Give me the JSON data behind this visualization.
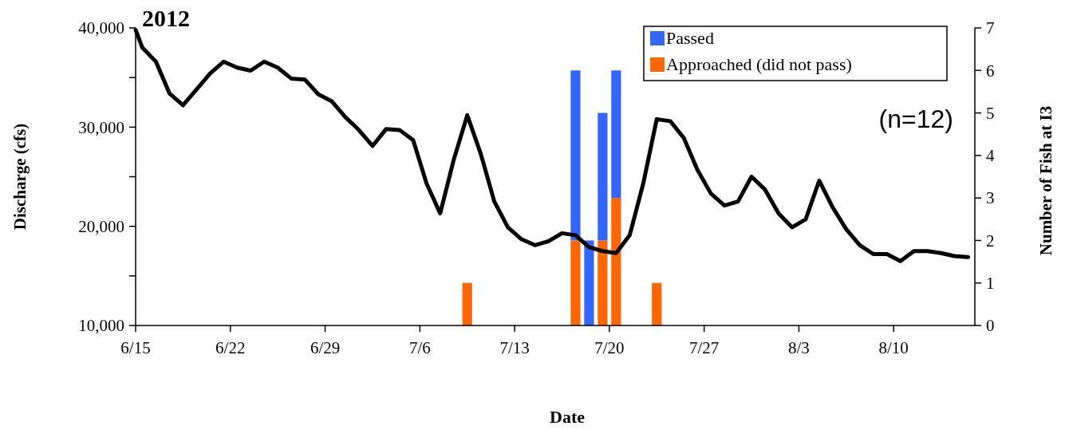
{
  "chart_data": {
    "type": "line",
    "title": "2012",
    "xlabel": "Date",
    "ylabel": "Discharge (cfs)",
    "y2label": "Number of Fish at I3",
    "annotations": [
      "(n=12)"
    ],
    "xlim": [
      "2012-06-15",
      "2012-08-16"
    ],
    "xticks": [
      {
        "value": "2012-06-15",
        "label": "6/15"
      },
      {
        "value": "2012-06-22",
        "label": "6/22"
      },
      {
        "value": "2012-06-29",
        "label": "6/29"
      },
      {
        "value": "2012-07-06",
        "label": "7/6"
      },
      {
        "value": "2012-07-13",
        "label": "7/13"
      },
      {
        "value": "2012-07-20",
        "label": "7/20"
      },
      {
        "value": "2012-07-27",
        "label": "7/27"
      },
      {
        "value": "2012-08-03",
        "label": "8/3"
      },
      {
        "value": "2012-08-10",
        "label": "8/10"
      }
    ],
    "ylim": [
      10000,
      40000
    ],
    "yticks": [
      {
        "value": 10000,
        "label": "10,000"
      },
      {
        "value": 15000,
        "label": null
      },
      {
        "value": 20000,
        "label": "20,000"
      },
      {
        "value": 25000,
        "label": null
      },
      {
        "value": 30000,
        "label": "30,000"
      },
      {
        "value": 35000,
        "label": null
      },
      {
        "value": 40000,
        "label": "40,000"
      }
    ],
    "y2lim": [
      0,
      7
    ],
    "y2ticks": [
      0,
      1,
      2,
      3,
      4,
      5,
      6,
      7
    ],
    "stacked": true,
    "legend": "top right",
    "series": [
      {
        "color": "#000000",
        "x": [
          "2012-06-15T00:00",
          "2012-06-15T12:00",
          "2012-06-16T12:00",
          "2012-06-17T12:00",
          "2012-06-18T12:00",
          "2012-06-19T12:00",
          "2012-06-20T12:00",
          "2012-06-21T12:00",
          "2012-06-22T12:00",
          "2012-06-23T12:00",
          "2012-06-24T12:00",
          "2012-06-25T12:00",
          "2012-06-26T12:00",
          "2012-06-27T12:00",
          "2012-06-28T12:00",
          "2012-06-29T12:00",
          "2012-06-30T12:00",
          "2012-07-01T12:00",
          "2012-07-02T12:00",
          "2012-07-03T12:00",
          "2012-07-04T12:00",
          "2012-07-05T12:00",
          "2012-07-06T12:00",
          "2012-07-07T12:00",
          "2012-07-08T12:00",
          "2012-07-09T12:00",
          "2012-07-10T12:00",
          "2012-07-11T12:00",
          "2012-07-12T12:00",
          "2012-07-13T12:00",
          "2012-07-14T12:00",
          "2012-07-15T12:00",
          "2012-07-16T12:00",
          "2012-07-17T12:00",
          "2012-07-18T12:00",
          "2012-07-19T12:00",
          "2012-07-20T12:00",
          "2012-07-21T12:00",
          "2012-07-22T12:00",
          "2012-07-23T12:00",
          "2012-07-24T12:00",
          "2012-07-25T12:00",
          "2012-07-26T12:00",
          "2012-07-27T12:00",
          "2012-07-28T12:00",
          "2012-07-29T12:00",
          "2012-07-30T12:00",
          "2012-07-31T12:00",
          "2012-08-01T12:00",
          "2012-08-02T12:00",
          "2012-08-03T12:00",
          "2012-08-04T12:00",
          "2012-08-05T12:00",
          "2012-08-06T12:00",
          "2012-08-07T12:00",
          "2012-08-08T12:00",
          "2012-08-09T12:00",
          "2012-08-10T12:00",
          "2012-08-11T12:00",
          "2012-08-12T12:00",
          "2012-08-13T12:00",
          "2012-08-14T12:00",
          "2012-08-15T12:00"
        ],
        "values": [
          39800,
          38000,
          36600,
          33400,
          32200,
          33800,
          35400,
          36600,
          36000,
          35700,
          36600,
          36000,
          34900,
          34800,
          33300,
          32600,
          31000,
          29700,
          28100,
          29800,
          29700,
          28700,
          24300,
          21300,
          26700,
          31200,
          27300,
          22500,
          19900,
          18700,
          18100,
          18500,
          19300,
          19100,
          17900,
          17500,
          17300,
          19100,
          24300,
          30800,
          30600,
          28900,
          25700,
          23300,
          22100,
          22500,
          25000,
          23700,
          21300,
          19900,
          20700,
          24600,
          21900,
          19700,
          18100,
          17200,
          17200,
          16500,
          17500,
          17500,
          17300,
          17000,
          16900
        ]
      },
      {
        "type": "bar",
        "axis": "y2",
        "name": "Approached (did not pass)",
        "color": "#ff6600",
        "x": [
          "2012-07-09T12:00",
          "2012-07-17T12:00",
          "2012-07-18T12:00",
          "2012-07-19T12:00",
          "2012-07-20T12:00",
          "2012-07-23T12:00"
        ],
        "values": [
          1,
          2,
          0,
          2,
          3,
          1
        ]
      },
      {
        "type": "bar",
        "axis": "y2",
        "name": "Passed",
        "color": "#3366ff",
        "x": [
          "2012-07-09T12:00",
          "2012-07-17T12:00",
          "2012-07-18T12:00",
          "2012-07-19T12:00",
          "2012-07-20T12:00",
          "2012-07-23T12:00"
        ],
        "values": [
          0,
          4,
          2,
          3,
          3,
          0
        ]
      }
    ]
  }
}
